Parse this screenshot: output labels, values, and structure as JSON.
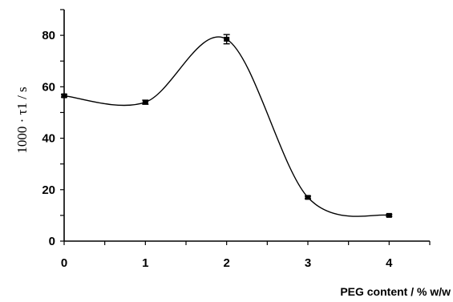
{
  "chart_data": {
    "type": "scatter",
    "title": "",
    "xlabel": "PEG content / % w/w",
    "ylabel": "1000 · τ1 / s",
    "xlim": [
      0,
      4.5
    ],
    "ylim": [
      0,
      90
    ],
    "x_ticks": [
      "0",
      "1",
      "2",
      "3",
      "4"
    ],
    "y_ticks": [
      "0",
      "20",
      "40",
      "60",
      "80"
    ],
    "grid": false,
    "legend": "none",
    "series": [
      {
        "x": [
          0,
          1,
          2,
          3,
          4
        ],
        "y": [
          56.5,
          54,
          78.5,
          17,
          10
        ],
        "error": [
          0.5,
          0.8,
          1.8,
          0.5,
          0.4
        ],
        "trend_curve": true
      }
    ],
    "colors": {
      "line": "#000000",
      "marker": "#000000"
    }
  }
}
